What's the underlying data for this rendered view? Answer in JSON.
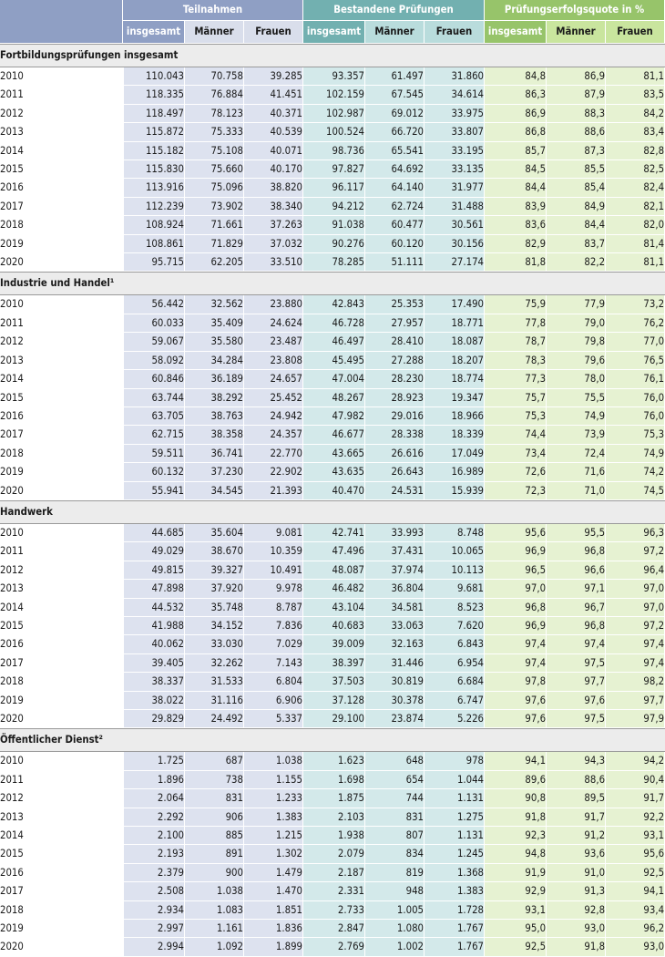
{
  "header": {
    "groups": [
      "Teilnahmen",
      "Bestandene Prüfungen",
      "Prüfungserfolgsquote in %"
    ],
    "subheaders": [
      "insgesamt",
      "Männer",
      "Frauen",
      "insgesamt",
      "Männer",
      "Frauen",
      "insgesamt",
      "Männer",
      "Frauen"
    ]
  },
  "sections": [
    {
      "title": "Fortbildungsprüfungen insgesamt",
      "rows": [
        [
          "2010",
          "110.043",
          "70.758",
          "39.285",
          "93.357",
          "61.497",
          "31.860",
          "84,8",
          "86,9",
          "81,1"
        ],
        [
          "2011",
          "118.335",
          "76.884",
          "41.451",
          "102.159",
          "67.545",
          "34.614",
          "86,3",
          "87,9",
          "83,5"
        ],
        [
          "2012",
          "118.497",
          "78.123",
          "40.371",
          "102.987",
          "69.012",
          "33.975",
          "86,9",
          "88,3",
          "84,2"
        ],
        [
          "2013",
          "115.872",
          "75.333",
          "40.539",
          "100.524",
          "66.720",
          "33.807",
          "86,8",
          "88,6",
          "83,4"
        ],
        [
          "2014",
          "115.182",
          "75.108",
          "40.071",
          "98.736",
          "65.541",
          "33.195",
          "85,7",
          "87,3",
          "82,8"
        ],
        [
          "2015",
          "115.830",
          "75.660",
          "40.170",
          "97.827",
          "64.692",
          "33.135",
          "84,5",
          "85,5",
          "82,5"
        ],
        [
          "2016",
          "113.916",
          "75.096",
          "38.820",
          "96.117",
          "64.140",
          "31.977",
          "84,4",
          "85,4",
          "82,4"
        ],
        [
          "2017",
          "112.239",
          "73.902",
          "38.340",
          "94.212",
          "62.724",
          "31.488",
          "83,9",
          "84,9",
          "82,1"
        ],
        [
          "2018",
          "108.924",
          "71.661",
          "37.263",
          "91.038",
          "60.477",
          "30.561",
          "83,6",
          "84,4",
          "82,0"
        ],
        [
          "2019",
          "108.861",
          "71.829",
          "37.032",
          "90.276",
          "60.120",
          "30.156",
          "82,9",
          "83,7",
          "81,4"
        ],
        [
          "2020",
          "95.715",
          "62.205",
          "33.510",
          "78.285",
          "51.111",
          "27.174",
          "81,8",
          "82,2",
          "81,1"
        ]
      ]
    },
    {
      "title": "Industrie und Handel¹",
      "rows": [
        [
          "2010",
          "56.442",
          "32.562",
          "23.880",
          "42.843",
          "25.353",
          "17.490",
          "75,9",
          "77,9",
          "73,2"
        ],
        [
          "2011",
          "60.033",
          "35.409",
          "24.624",
          "46.728",
          "27.957",
          "18.771",
          "77,8",
          "79,0",
          "76,2"
        ],
        [
          "2012",
          "59.067",
          "35.580",
          "23.487",
          "46.497",
          "28.410",
          "18.087",
          "78,7",
          "79,8",
          "77,0"
        ],
        [
          "2013",
          "58.092",
          "34.284",
          "23.808",
          "45.495",
          "27.288",
          "18.207",
          "78,3",
          "79,6",
          "76,5"
        ],
        [
          "2014",
          "60.846",
          "36.189",
          "24.657",
          "47.004",
          "28.230",
          "18.774",
          "77,3",
          "78,0",
          "76,1"
        ],
        [
          "2015",
          "63.744",
          "38.292",
          "25.452",
          "48.267",
          "28.923",
          "19.347",
          "75,7",
          "75,5",
          "76,0"
        ],
        [
          "2016",
          "63.705",
          "38.763",
          "24.942",
          "47.982",
          "29.016",
          "18.966",
          "75,3",
          "74,9",
          "76,0"
        ],
        [
          "2017",
          "62.715",
          "38.358",
          "24.357",
          "46.677",
          "28.338",
          "18.339",
          "74,4",
          "73,9",
          "75,3"
        ],
        [
          "2018",
          "59.511",
          "36.741",
          "22.770",
          "43.665",
          "26.616",
          "17.049",
          "73,4",
          "72,4",
          "74,9"
        ],
        [
          "2019",
          "60.132",
          "37.230",
          "22.902",
          "43.635",
          "26.643",
          "16.989",
          "72,6",
          "71,6",
          "74,2"
        ],
        [
          "2020",
          "55.941",
          "34.545",
          "21.393",
          "40.470",
          "24.531",
          "15.939",
          "72,3",
          "71,0",
          "74,5"
        ]
      ]
    },
    {
      "title": "Handwerk",
      "rows": [
        [
          "2010",
          "44.685",
          "35.604",
          "9.081",
          "42.741",
          "33.993",
          "8.748",
          "95,6",
          "95,5",
          "96,3"
        ],
        [
          "2011",
          "49.029",
          "38.670",
          "10.359",
          "47.496",
          "37.431",
          "10.065",
          "96,9",
          "96,8",
          "97,2"
        ],
        [
          "2012",
          "49.815",
          "39.327",
          "10.491",
          "48.087",
          "37.974",
          "10.113",
          "96,5",
          "96,6",
          "96,4"
        ],
        [
          "2013",
          "47.898",
          "37.920",
          "9.978",
          "46.482",
          "36.804",
          "9.681",
          "97,0",
          "97,1",
          "97,0"
        ],
        [
          "2014",
          "44.532",
          "35.748",
          "8.787",
          "43.104",
          "34.581",
          "8.523",
          "96,8",
          "96,7",
          "97,0"
        ],
        [
          "2015",
          "41.988",
          "34.152",
          "7.836",
          "40.683",
          "33.063",
          "7.620",
          "96,9",
          "96,8",
          "97,2"
        ],
        [
          "2016",
          "40.062",
          "33.030",
          "7.029",
          "39.009",
          "32.163",
          "6.843",
          "97,4",
          "97,4",
          "97,4"
        ],
        [
          "2017",
          "39.405",
          "32.262",
          "7.143",
          "38.397",
          "31.446",
          "6.954",
          "97,4",
          "97,5",
          "97,4"
        ],
        [
          "2018",
          "38.337",
          "31.533",
          "6.804",
          "37.503",
          "30.819",
          "6.684",
          "97,8",
          "97,7",
          "98,2"
        ],
        [
          "2019",
          "38.022",
          "31.116",
          "6.906",
          "37.128",
          "30.378",
          "6.747",
          "97,6",
          "97,6",
          "97,7"
        ],
        [
          "2020",
          "29.829",
          "24.492",
          "5.337",
          "29.100",
          "23.874",
          "5.226",
          "97,6",
          "97,5",
          "97,9"
        ]
      ]
    },
    {
      "title": "Öffentlicher Dienst²",
      "rows": [
        [
          "2010",
          "1.725",
          "687",
          "1.038",
          "1.623",
          "648",
          "978",
          "94,1",
          "94,3",
          "94,2"
        ],
        [
          "2011",
          "1.896",
          "738",
          "1.155",
          "1.698",
          "654",
          "1.044",
          "89,6",
          "88,6",
          "90,4"
        ],
        [
          "2012",
          "2.064",
          "831",
          "1.233",
          "1.875",
          "744",
          "1.131",
          "90,8",
          "89,5",
          "91,7"
        ],
        [
          "2013",
          "2.292",
          "906",
          "1.383",
          "2.103",
          "831",
          "1.275",
          "91,8",
          "91,7",
          "92,2"
        ],
        [
          "2014",
          "2.100",
          "885",
          "1.215",
          "1.938",
          "807",
          "1.131",
          "92,3",
          "91,2",
          "93,1"
        ],
        [
          "2015",
          "2.193",
          "891",
          "1.302",
          "2.079",
          "834",
          "1.245",
          "94,8",
          "93,6",
          "95,6"
        ],
        [
          "2016",
          "2.379",
          "900",
          "1.479",
          "2.187",
          "819",
          "1.368",
          "91,9",
          "91,0",
          "92,5"
        ],
        [
          "2017",
          "2.508",
          "1.038",
          "1.470",
          "2.331",
          "948",
          "1.383",
          "92,9",
          "91,3",
          "94,1"
        ],
        [
          "2018",
          "2.934",
          "1.083",
          "1.851",
          "2.733",
          "1.005",
          "1.728",
          "93,1",
          "92,8",
          "93,4"
        ],
        [
          "2019",
          "2.997",
          "1.161",
          "1.836",
          "2.847",
          "1.080",
          "1.767",
          "95,0",
          "93,0",
          "96,2"
        ],
        [
          "2020",
          "2.994",
          "1.092",
          "1.899",
          "2.769",
          "1.002",
          "1.767",
          "92,5",
          "91,8",
          "93,0"
        ]
      ]
    }
  ]
}
